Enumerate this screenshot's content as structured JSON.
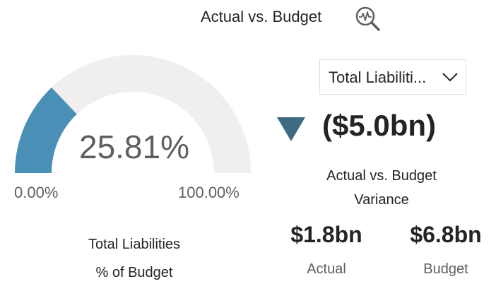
{
  "header": {
    "title": "Actual vs. Budget",
    "analyze_icon": "analyze-magnifier-icon"
  },
  "gauge": {
    "value_label": "25.81%",
    "value_fraction": 0.2581,
    "min_label": "0.00%",
    "max_label": "100.00%",
    "caption_line1": "Total Liabilities",
    "caption_line2": "% of Budget",
    "fill_color": "#4a8fb5",
    "track_color": "#f0efee"
  },
  "slicer": {
    "selected_label": "Total Liabiliti...",
    "icon": "chevron-down-icon"
  },
  "variance": {
    "value": "($5.0bn)",
    "caption_line1": "Actual vs. Budget",
    "caption_line2": "Variance",
    "indicator_icon": "down-triangle-icon",
    "indicator_color": "#3e6b82"
  },
  "kpis": {
    "actual_value": "$1.8bn",
    "actual_label": "Actual",
    "budget_value": "$6.8bn",
    "budget_label": "Budget"
  }
}
